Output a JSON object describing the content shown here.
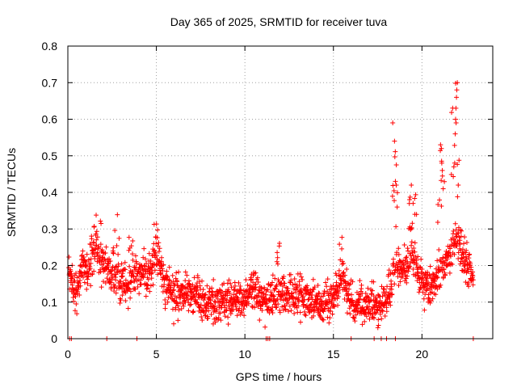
{
  "chart_data": {
    "type": "scatter",
    "title": "Day 365 of 2025, SRMTID for receiver tuva",
    "xlabel": "GPS time / hours",
    "ylabel": "SRMTID / TECUs",
    "xlim": [
      0,
      24
    ],
    "ylim": [
      0,
      0.8
    ],
    "xticks": [
      0,
      5,
      10,
      15,
      20
    ],
    "yticks": [
      0,
      0.1,
      0.2,
      0.3,
      0.4,
      0.5,
      0.6,
      0.7,
      0.8
    ],
    "xtick_labels": [
      "0",
      "5",
      "10",
      "15",
      "20"
    ],
    "ytick_labels": [
      "0",
      "0.1",
      "0.2",
      "0.3",
      "0.4",
      "0.5",
      "0.6",
      "0.7",
      "0.8"
    ],
    "grid": true,
    "marker": "+",
    "color": "#ff0000",
    "series": [
      {
        "name": "SRMTID",
        "profile": [
          [
            0.0,
            0.22
          ],
          [
            0.3,
            0.15
          ],
          [
            0.5,
            0.13
          ],
          [
            0.8,
            0.2
          ],
          [
            1.2,
            0.2
          ],
          [
            1.6,
            0.24
          ],
          [
            2.0,
            0.2
          ],
          [
            2.5,
            0.17
          ],
          [
            3.0,
            0.16
          ],
          [
            3.5,
            0.16
          ],
          [
            4.0,
            0.19
          ],
          [
            4.5,
            0.17
          ],
          [
            5.0,
            0.22
          ],
          [
            5.5,
            0.14
          ],
          [
            6.0,
            0.12
          ],
          [
            7.0,
            0.12
          ],
          [
            8.0,
            0.1
          ],
          [
            9.0,
            0.1
          ],
          [
            10.0,
            0.11
          ],
          [
            10.5,
            0.14
          ],
          [
            11.0,
            0.1
          ],
          [
            12.0,
            0.12
          ],
          [
            13.0,
            0.12
          ],
          [
            14.0,
            0.09
          ],
          [
            15.0,
            0.11
          ],
          [
            15.5,
            0.17
          ],
          [
            16.0,
            0.1
          ],
          [
            17.0,
            0.09
          ],
          [
            17.5,
            0.08
          ],
          [
            18.0,
            0.11
          ],
          [
            18.5,
            0.2
          ],
          [
            19.0,
            0.19
          ],
          [
            19.5,
            0.22
          ],
          [
            20.0,
            0.15
          ],
          [
            20.5,
            0.14
          ],
          [
            21.0,
            0.18
          ],
          [
            21.5,
            0.22
          ],
          [
            22.0,
            0.27
          ],
          [
            22.5,
            0.21
          ],
          [
            22.9,
            0.17
          ]
        ],
        "bursts": [
          {
            "x": [
              1.3,
              2.0
            ],
            "max": 0.34
          },
          {
            "x": [
              2.5,
              2.9
            ],
            "max": 0.36
          },
          {
            "x": [
              3.4,
              3.7
            ],
            "max": 0.28
          },
          {
            "x": [
              4.8,
              5.2
            ],
            "max": 0.32
          },
          {
            "x": [
              11.8,
              12.0
            ],
            "max": 0.29
          },
          {
            "x": [
              15.3,
              15.6
            ],
            "max": 0.3
          },
          {
            "x": [
              18.3,
              18.7
            ],
            "max": 0.59
          },
          {
            "x": [
              19.2,
              19.7
            ],
            "max": 0.42
          },
          {
            "x": [
              20.8,
              21.3
            ],
            "max": 0.53
          },
          {
            "x": [
              21.6,
              22.1
            ],
            "max": 0.7
          }
        ],
        "highlights": [
          [
            18.35,
            0.59
          ],
          [
            18.45,
            0.54
          ],
          [
            18.5,
            0.43
          ],
          [
            18.55,
            0.42
          ],
          [
            18.6,
            0.36
          ],
          [
            19.3,
            0.38
          ],
          [
            19.4,
            0.42
          ],
          [
            19.5,
            0.37
          ],
          [
            19.6,
            0.34
          ],
          [
            21.05,
            0.53
          ],
          [
            21.1,
            0.52
          ],
          [
            21.12,
            0.48
          ],
          [
            21.15,
            0.46
          ],
          [
            21.2,
            0.41
          ],
          [
            21.8,
            0.47
          ],
          [
            21.85,
            0.48
          ],
          [
            21.88,
            0.56
          ],
          [
            21.9,
            0.6
          ],
          [
            21.92,
            0.63
          ],
          [
            21.95,
            0.66
          ],
          [
            21.97,
            0.68
          ],
          [
            22.0,
            0.7
          ],
          [
            21.93,
            0.59
          ],
          [
            22.05,
            0.42
          ]
        ],
        "zero_points": [
          0.1,
          0.2,
          2.2,
          3.9,
          11.2,
          11.3,
          11.4,
          16.0,
          17.3,
          17.7,
          18.0,
          18.5,
          22.9
        ]
      }
    ]
  }
}
